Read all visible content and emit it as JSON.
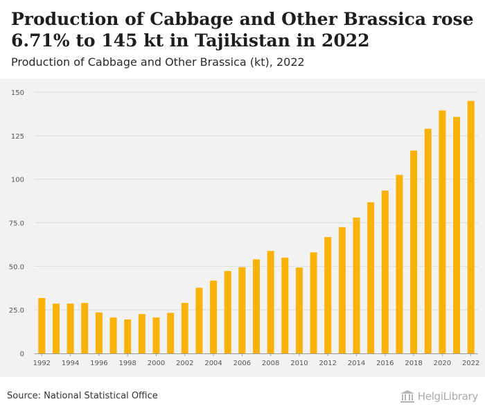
{
  "header": {
    "title": "Production of Cabbage and Other Brassica rose 6.71% to 145 kt in Tajikistan in 2022",
    "subtitle": "Production of Cabbage and Other Brassica (kt), 2022"
  },
  "footer": {
    "source": "Source: National Statistical Office",
    "brand": "HelgiLibrary"
  },
  "colors": {
    "bar": "#f9b208",
    "grid": "#dcdcdc",
    "plot_background": "#f2f2f2",
    "tick_text": "#555555"
  },
  "chart_data": {
    "type": "bar",
    "categories": [
      "1992",
      "1993",
      "1994",
      "1995",
      "1996",
      "1997",
      "1998",
      "1999",
      "2000",
      "2001",
      "2002",
      "2003",
      "2004",
      "2005",
      "2006",
      "2007",
      "2008",
      "2009",
      "2010",
      "2011",
      "2012",
      "2013",
      "2014",
      "2015",
      "2016",
      "2017",
      "2018",
      "2019",
      "2020",
      "2021",
      "2022"
    ],
    "values": [
      31.8,
      28.6,
      28.6,
      29.0,
      23.5,
      20.6,
      19.5,
      22.6,
      20.6,
      23.3,
      29.0,
      37.7,
      41.8,
      47.3,
      49.5,
      54.0,
      58.8,
      55.0,
      49.3,
      58.0,
      66.8,
      72.5,
      78.0,
      86.8,
      93.5,
      102.5,
      116.5,
      129.0,
      139.5,
      135.8,
      145.0
    ],
    "x_tick_labels": [
      "1992",
      "1994",
      "1996",
      "1998",
      "2000",
      "2002",
      "2004",
      "2006",
      "2008",
      "2010",
      "2012",
      "2014",
      "2016",
      "2018",
      "2020",
      "2022"
    ],
    "y_ticks": [
      0,
      25,
      50,
      75,
      100,
      125,
      150
    ],
    "y_tick_labels": [
      "0",
      "25.0",
      "50.0",
      "75.0",
      "100",
      "125",
      "150"
    ],
    "ylim": [
      0,
      150
    ],
    "grid": true,
    "legend": "none"
  }
}
